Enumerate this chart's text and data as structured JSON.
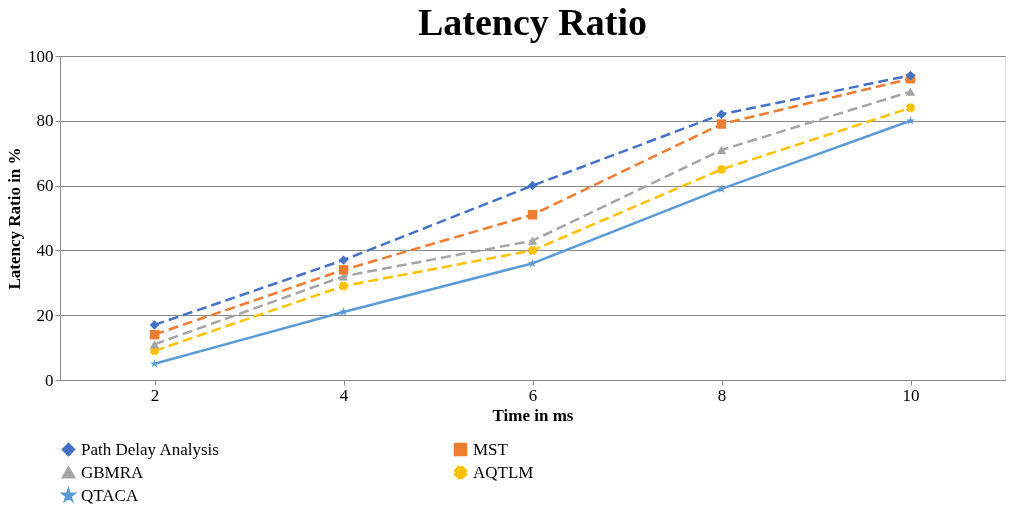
{
  "chart_data": {
    "type": "line",
    "title": "Latency Ratio",
    "xlabel": "Time in ms",
    "ylabel": "Latency Ratio  in %",
    "categories": [
      "2",
      "4",
      "6",
      "8",
      "10"
    ],
    "series": [
      {
        "name": "Path Delay Analysis",
        "color": "#4472c4",
        "marker": "diamond",
        "line_style": "dashed",
        "values": [
          17,
          37,
          60,
          82,
          94
        ]
      },
      {
        "name": "MST",
        "color": "#ed7d31",
        "marker": "square",
        "line_style": "dashed",
        "values": [
          14,
          34,
          51,
          79,
          93
        ]
      },
      {
        "name": "GBMRA",
        "color": "#a5a5a5",
        "marker": "triangle",
        "line_style": "dashed",
        "values": [
          11,
          32,
          43,
          71,
          89
        ]
      },
      {
        "name": "AQTLM",
        "color": "#ffc000",
        "marker": "cross",
        "line_style": "dashed",
        "values": [
          9,
          29,
          40,
          65,
          84
        ]
      },
      {
        "name": "QTACA",
        "color": "#5b9bd5",
        "marker": "star",
        "line_style": "solid",
        "values": [
          5,
          21,
          36,
          59,
          80
        ]
      }
    ],
    "ylim": [
      0,
      100
    ],
    "yticks": [
      0,
      20,
      40,
      60,
      80,
      100
    ],
    "grid": "y",
    "legend": "bottom"
  }
}
